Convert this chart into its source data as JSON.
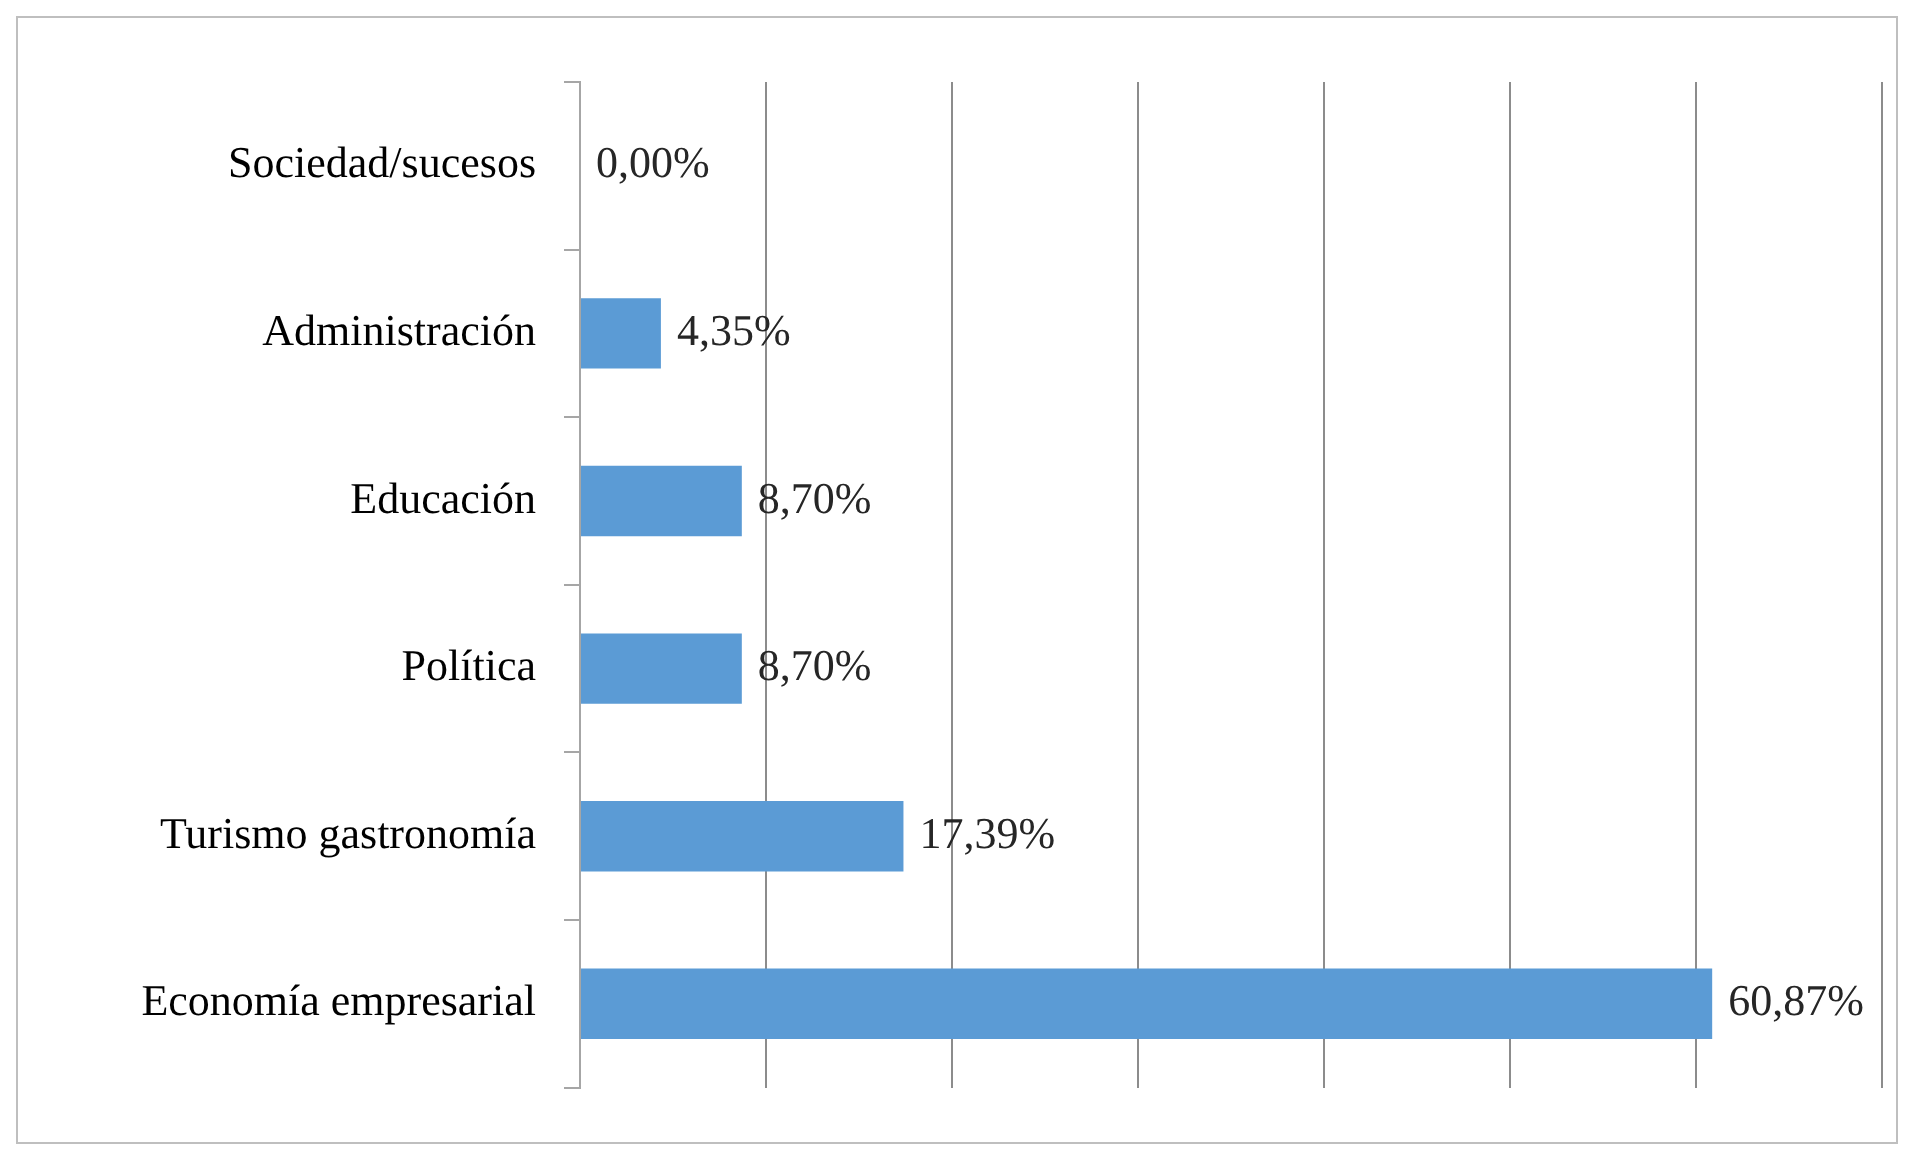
{
  "chart_data": {
    "type": "bar",
    "orientation": "horizontal",
    "categories": [
      "Sociedad/sucesos",
      "Administración",
      "Educación",
      "Política",
      "Turismo gastronomía",
      "Economía empresarial"
    ],
    "values": [
      0,
      4.35,
      8.7,
      8.7,
      17.39,
      60.87
    ],
    "value_labels": [
      "0,00%",
      "4,35%",
      "8,70%",
      "8,70%",
      "17,39%",
      "60,87%"
    ],
    "color": "#5b9bd5",
    "xlim": [
      0,
      70
    ],
    "xticks": [
      {
        "value": 0,
        "label": null
      },
      {
        "value": 10,
        "label": null
      },
      {
        "value": 20,
        "label": null
      },
      {
        "value": 30,
        "label": null
      },
      {
        "value": 40,
        "label": null
      },
      {
        "value": 50,
        "label": null
      },
      {
        "value": 60,
        "label": null
      },
      {
        "value": 70,
        "label": null
      }
    ],
    "grid": "x",
    "legend": false
  }
}
